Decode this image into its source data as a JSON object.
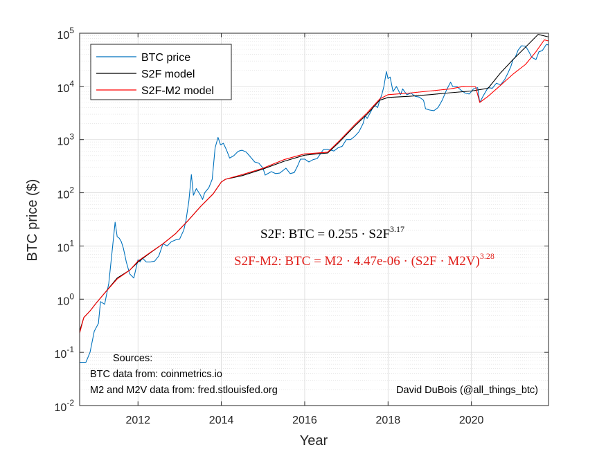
{
  "chart_data": {
    "type": "line",
    "xlabel": "Year",
    "ylabel": "BTC price ($)",
    "xlim": [
      2010.6,
      2021.85
    ],
    "ylog_range": [
      -2,
      5
    ],
    "x_ticks": [
      2012,
      2014,
      2016,
      2018,
      2020
    ],
    "x_tick_labels": [
      "2012",
      "2014",
      "2016",
      "2018",
      "2020"
    ],
    "y_ticks": [
      {
        "base": "10",
        "exp": "-2",
        "value": 0.01
      },
      {
        "base": "10",
        "exp": "-1",
        "value": 0.1
      },
      {
        "base": "10",
        "exp": "0",
        "value": 1
      },
      {
        "base": "10",
        "exp": "1",
        "value": 10
      },
      {
        "base": "10",
        "exp": "2",
        "value": 100
      },
      {
        "base": "10",
        "exp": "3",
        "value": 1000
      },
      {
        "base": "10",
        "exp": "4",
        "value": 10000
      },
      {
        "base": "10",
        "exp": "5",
        "value": 100000
      }
    ],
    "grid": true,
    "legend_position": "top-left",
    "series": [
      {
        "name": "BTC price",
        "color": "#0072BD",
        "points": [
          [
            2010.6,
            0.065
          ],
          [
            2010.75,
            0.065
          ],
          [
            2010.85,
            0.1
          ],
          [
            2010.95,
            0.25
          ],
          [
            2011.05,
            0.35
          ],
          [
            2011.1,
            0.9
          ],
          [
            2011.2,
            0.8
          ],
          [
            2011.3,
            2.0
          ],
          [
            2011.38,
            8
          ],
          [
            2011.45,
            28
          ],
          [
            2011.5,
            15
          ],
          [
            2011.55,
            14
          ],
          [
            2011.6,
            12
          ],
          [
            2011.65,
            9
          ],
          [
            2011.72,
            5
          ],
          [
            2011.8,
            3
          ],
          [
            2011.9,
            2.5
          ],
          [
            2012.0,
            5.5
          ],
          [
            2012.05,
            5
          ],
          [
            2012.1,
            6
          ],
          [
            2012.2,
            5
          ],
          [
            2012.3,
            5
          ],
          [
            2012.4,
            5.2
          ],
          [
            2012.5,
            6.5
          ],
          [
            2012.6,
            11
          ],
          [
            2012.7,
            10
          ],
          [
            2012.8,
            12
          ],
          [
            2012.9,
            13
          ],
          [
            2013.0,
            13.5
          ],
          [
            2013.1,
            20
          ],
          [
            2013.15,
            30
          ],
          [
            2013.22,
            70
          ],
          [
            2013.28,
            220
          ],
          [
            2013.33,
            90
          ],
          [
            2013.4,
            120
          ],
          [
            2013.5,
            90
          ],
          [
            2013.55,
            75
          ],
          [
            2013.6,
            100
          ],
          [
            2013.7,
            125
          ],
          [
            2013.78,
            180
          ],
          [
            2013.85,
            700
          ],
          [
            2013.92,
            1100
          ],
          [
            2013.98,
            800
          ],
          [
            2014.05,
            850
          ],
          [
            2014.12,
            650
          ],
          [
            2014.2,
            450
          ],
          [
            2014.3,
            500
          ],
          [
            2014.4,
            600
          ],
          [
            2014.45,
            620
          ],
          [
            2014.5,
            630
          ],
          [
            2014.6,
            580
          ],
          [
            2014.7,
            470
          ],
          [
            2014.8,
            380
          ],
          [
            2014.9,
            360
          ],
          [
            2015.0,
            290
          ],
          [
            2015.05,
            215
          ],
          [
            2015.2,
            250
          ],
          [
            2015.3,
            230
          ],
          [
            2015.4,
            235
          ],
          [
            2015.5,
            270
          ],
          [
            2015.55,
            290
          ],
          [
            2015.65,
            230
          ],
          [
            2015.75,
            240
          ],
          [
            2015.83,
            320
          ],
          [
            2015.9,
            430
          ],
          [
            2016.0,
            430
          ],
          [
            2016.1,
            380
          ],
          [
            2016.2,
            420
          ],
          [
            2016.3,
            440
          ],
          [
            2016.45,
            650
          ],
          [
            2016.55,
            660
          ],
          [
            2016.7,
            610
          ],
          [
            2016.8,
            700
          ],
          [
            2016.9,
            750
          ],
          [
            2017.0,
            1000
          ],
          [
            2017.1,
            1000
          ],
          [
            2017.2,
            1150
          ],
          [
            2017.3,
            1400
          ],
          [
            2017.4,
            2000
          ],
          [
            2017.45,
            2800
          ],
          [
            2017.5,
            2500
          ],
          [
            2017.6,
            3500
          ],
          [
            2017.65,
            4300
          ],
          [
            2017.7,
            4300
          ],
          [
            2017.75,
            4000
          ],
          [
            2017.8,
            5500
          ],
          [
            2017.85,
            7000
          ],
          [
            2017.9,
            10000
          ],
          [
            2017.96,
            19000
          ],
          [
            2018.0,
            14000
          ],
          [
            2018.05,
            15000
          ],
          [
            2018.12,
            8000
          ],
          [
            2018.2,
            10000
          ],
          [
            2018.3,
            7000
          ],
          [
            2018.35,
            9000
          ],
          [
            2018.45,
            7000
          ],
          [
            2018.55,
            7500
          ],
          [
            2018.65,
            6500
          ],
          [
            2018.75,
            6300
          ],
          [
            2018.85,
            5500
          ],
          [
            2018.9,
            3800
          ],
          [
            2019.0,
            3600
          ],
          [
            2019.1,
            3500
          ],
          [
            2019.2,
            4000
          ],
          [
            2019.3,
            5500
          ],
          [
            2019.4,
            8500
          ],
          [
            2019.5,
            12000
          ],
          [
            2019.55,
            10000
          ],
          [
            2019.65,
            10000
          ],
          [
            2019.75,
            8500
          ],
          [
            2019.85,
            7500
          ],
          [
            2019.95,
            7200
          ],
          [
            2020.05,
            9000
          ],
          [
            2020.15,
            9500
          ],
          [
            2020.2,
            5000
          ],
          [
            2020.3,
            7000
          ],
          [
            2020.4,
            9500
          ],
          [
            2020.5,
            9200
          ],
          [
            2020.6,
            11500
          ],
          [
            2020.7,
            10700
          ],
          [
            2020.8,
            13500
          ],
          [
            2020.88,
            18000
          ],
          [
            2020.95,
            24000
          ],
          [
            2021.0,
            32000
          ],
          [
            2021.05,
            35000
          ],
          [
            2021.12,
            48000
          ],
          [
            2021.2,
            58000
          ],
          [
            2021.3,
            57000
          ],
          [
            2021.38,
            45000
          ],
          [
            2021.45,
            35000
          ],
          [
            2021.55,
            32000
          ],
          [
            2021.62,
            45000
          ],
          [
            2021.7,
            47000
          ],
          [
            2021.8,
            62000
          ],
          [
            2021.85,
            60000
          ]
        ]
      },
      {
        "name": "S2F model",
        "color": "#000000",
        "points": [
          [
            2010.6,
            0.25
          ],
          [
            2010.7,
            0.45
          ],
          [
            2010.85,
            0.6
          ],
          [
            2011.0,
            0.85
          ],
          [
            2011.2,
            1.3
          ],
          [
            2011.5,
            2.5
          ],
          [
            2011.8,
            3.5
          ],
          [
            2012.0,
            5
          ],
          [
            2012.3,
            7.5
          ],
          [
            2012.6,
            11
          ],
          [
            2012.9,
            17
          ],
          [
            2013.2,
            30
          ],
          [
            2013.5,
            55
          ],
          [
            2013.8,
            95
          ],
          [
            2014.0,
            160
          ],
          [
            2014.1,
            180
          ],
          [
            2014.5,
            210
          ],
          [
            2015.0,
            280
          ],
          [
            2015.5,
            390
          ],
          [
            2016.0,
            510
          ],
          [
            2016.3,
            540
          ],
          [
            2016.55,
            560
          ],
          [
            2016.8,
            850
          ],
          [
            2017.2,
            1800
          ],
          [
            2017.5,
            3000
          ],
          [
            2017.8,
            5500
          ],
          [
            2018.0,
            6200
          ],
          [
            2018.5,
            6500
          ],
          [
            2019.0,
            7000
          ],
          [
            2019.5,
            7600
          ],
          [
            2020.0,
            8200
          ],
          [
            2020.4,
            9200
          ],
          [
            2020.7,
            18000
          ],
          [
            2021.0,
            32000
          ],
          [
            2021.3,
            55000
          ],
          [
            2021.6,
            95000
          ],
          [
            2021.85,
            85000
          ]
        ]
      },
      {
        "name": "S2F-M2 model",
        "color": "#FF0000",
        "points": [
          [
            2010.6,
            0.23
          ],
          [
            2010.7,
            0.45
          ],
          [
            2010.85,
            0.6
          ],
          [
            2011.0,
            0.85
          ],
          [
            2011.2,
            1.3
          ],
          [
            2011.5,
            2.4
          ],
          [
            2011.8,
            3.5
          ],
          [
            2012.0,
            5.2
          ],
          [
            2012.3,
            7.6
          ],
          [
            2012.6,
            11
          ],
          [
            2012.9,
            17
          ],
          [
            2013.2,
            30
          ],
          [
            2013.5,
            55
          ],
          [
            2013.8,
            95
          ],
          [
            2014.0,
            160
          ],
          [
            2014.1,
            180
          ],
          [
            2014.5,
            220
          ],
          [
            2015.0,
            290
          ],
          [
            2015.5,
            420
          ],
          [
            2016.0,
            540
          ],
          [
            2016.3,
            560
          ],
          [
            2016.55,
            580
          ],
          [
            2016.8,
            900
          ],
          [
            2017.2,
            1900
          ],
          [
            2017.5,
            3200
          ],
          [
            2017.8,
            5800
          ],
          [
            2018.0,
            7000
          ],
          [
            2018.5,
            7500
          ],
          [
            2019.0,
            8200
          ],
          [
            2019.5,
            9000
          ],
          [
            2019.8,
            10000
          ],
          [
            2020.1,
            9800
          ],
          [
            2020.2,
            5000
          ],
          [
            2020.4,
            6500
          ],
          [
            2020.7,
            10500
          ],
          [
            2021.0,
            17000
          ],
          [
            2021.3,
            26000
          ],
          [
            2021.55,
            45000
          ],
          [
            2021.75,
            75000
          ],
          [
            2021.85,
            72000
          ]
        ]
      }
    ],
    "annotations": {
      "formula_s2f": {
        "text": "S2F: BTC = 0.255 · S2F",
        "sup": "3.17",
        "color": "#000000"
      },
      "formula_m2": {
        "text": "S2F-M2: BTC = M2 · 4.47e-06 · (S2F · M2V)",
        "sup": "3.28",
        "color": "#E0201B"
      },
      "sources_title": "Sources:",
      "sources_btc": "BTC data from: coinmetrics.io",
      "sources_m2": "M2 and M2V data from: fred.stlouisfed.org",
      "author": "David DuBois (@all_things_btc)"
    }
  }
}
